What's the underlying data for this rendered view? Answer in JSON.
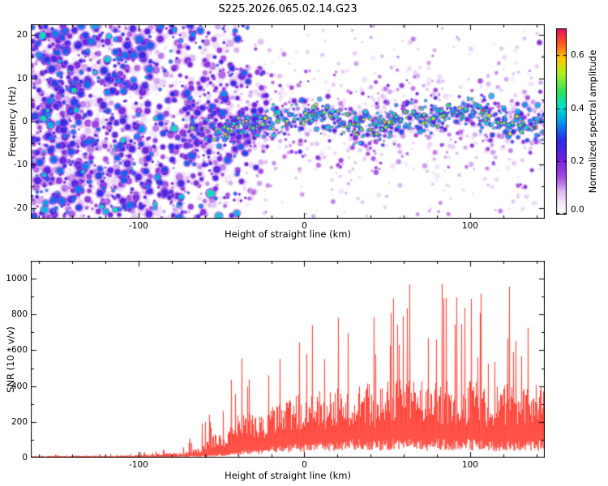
{
  "title": "S225.2026.065.02.14.G23",
  "colorbar": {
    "label": "Normalized spectral amplitude",
    "ticks": [
      0.0,
      0.2,
      0.4,
      0.6
    ],
    "min": 0.0,
    "max": 0.7
  },
  "chart_data": [
    {
      "type": "heatmap",
      "name": "spectrogram",
      "title": "S225.2026.065.02.14.G23",
      "xlabel": "Height of straight line (km)",
      "ylabel": "Frequency (Hz)",
      "xlim": [
        -165,
        145
      ],
      "ylim": [
        -22.5,
        22.5
      ],
      "xticks": [
        -100,
        0,
        100
      ],
      "yticks": [
        20,
        10,
        0,
        -10,
        -20
      ],
      "amplitude_range": [
        0,
        0.7
      ],
      "colormap_stops": [
        [
          0.0,
          "#ffffff"
        ],
        [
          0.06,
          "#f3e8fa"
        ],
        [
          0.12,
          "#ddbcf0"
        ],
        [
          0.2,
          "#a44be0"
        ],
        [
          0.3,
          "#6d1fd8"
        ],
        [
          0.4,
          "#2a2ae8"
        ],
        [
          0.5,
          "#009cf0"
        ],
        [
          0.58,
          "#00e0c8"
        ],
        [
          0.66,
          "#2ce45c"
        ],
        [
          0.76,
          "#b4ee1e"
        ],
        [
          0.84,
          "#ffc800"
        ],
        [
          0.92,
          "#ff5a1e"
        ],
        [
          1.0,
          "#e60f5f"
        ]
      ],
      "noise": {
        "x_range": [
          -165,
          -25
        ],
        "amp_range": [
          0.04,
          0.34
        ],
        "seed": 101
      },
      "band": {
        "x_range": [
          -72,
          145
        ],
        "center_freq": 0,
        "amp_range": [
          0.2,
          0.7
        ],
        "seed": 202
      },
      "description": "Dense low-amplitude purple noise at low heights condensing into a bright cyan-green band near 0 Hz toward higher heights, with occasional red hot spots"
    },
    {
      "type": "line",
      "name": "snr",
      "xlabel": "Height of straight line (km)",
      "ylabel": "SNR (10 * v/v)",
      "xlim": [
        -165,
        145
      ],
      "ylim": [
        0,
        1100
      ],
      "xticks": [
        -100,
        0,
        100
      ],
      "yticks": [
        0,
        200,
        400,
        600,
        800,
        1000
      ],
      "color": "#ff3b30",
      "seed": 7,
      "envelope": {
        "x": [
          -165,
          -150,
          -135,
          -120,
          -105,
          -95,
          -85,
          -78,
          -70,
          -63,
          -57,
          -52,
          -48,
          -44,
          -40,
          -36,
          -32,
          -28,
          -24,
          -20,
          -16,
          -12,
          -8,
          -4,
          0,
          6,
          13,
          20,
          28,
          36,
          44,
          52,
          60,
          68,
          76,
          84,
          92,
          100,
          108,
          116,
          124,
          132,
          139,
          145
        ],
        "low": [
          5,
          5,
          5,
          6,
          6,
          7,
          8,
          9,
          10,
          12,
          15,
          20,
          25,
          30,
          40,
          50,
          55,
          50,
          60,
          70,
          75,
          80,
          85,
          90,
          90,
          95,
          100,
          110,
          120,
          120,
          110,
          120,
          130,
          120,
          110,
          120,
          110,
          120,
          110,
          100,
          110,
          100,
          110,
          110
        ],
        "mean": [
          9,
          9,
          10,
          11,
          13,
          16,
          20,
          25,
          35,
          55,
          90,
          150,
          120,
          160,
          220,
          260,
          230,
          200,
          240,
          270,
          290,
          280,
          300,
          320,
          330,
          340,
          350,
          370,
          390,
          380,
          370,
          390,
          400,
          390,
          380,
          400,
          380,
          390,
          380,
          360,
          380,
          360,
          370,
          370
        ],
        "high": [
          16,
          16,
          18,
          20,
          26,
          35,
          55,
          75,
          110,
          180,
          260,
          430,
          300,
          480,
          700,
          560,
          480,
          420,
          600,
          660,
          700,
          620,
          680,
          880,
          700,
          760,
          820,
          860,
          940,
          900,
          870,
          950,
          1000,
          980,
          920,
          1060,
          960,
          920,
          1010,
          880,
          960,
          920,
          960,
          900
        ]
      }
    }
  ]
}
